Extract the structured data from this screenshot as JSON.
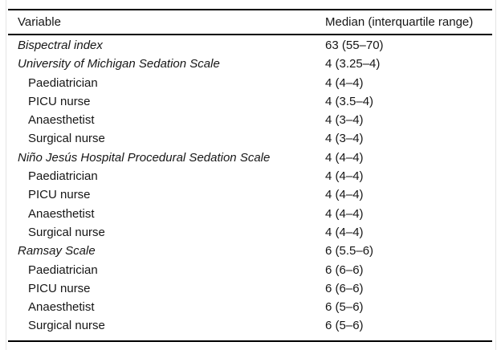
{
  "table": {
    "columns": [
      "Variable",
      "Median (interquartile range)"
    ],
    "rows": [
      {
        "type": "category",
        "label": "Bispectral index",
        "value": "63 (55–70)"
      },
      {
        "type": "category",
        "label": "University of Michigan Sedation Scale",
        "value": "4 (3.25–4)"
      },
      {
        "type": "sub",
        "label": "Paediatrician",
        "value": "4 (4–4)"
      },
      {
        "type": "sub",
        "label": "PICU nurse",
        "value": "4 (3.5–4)"
      },
      {
        "type": "sub",
        "label": "Anaesthetist",
        "value": "4 (3–4)"
      },
      {
        "type": "sub",
        "label": "Surgical nurse",
        "value": "4 (3–4)"
      },
      {
        "type": "category",
        "label": "Niño Jesús Hospital Procedural Sedation Scale",
        "value": "4 (4–4)"
      },
      {
        "type": "sub",
        "label": "Paediatrician",
        "value": "4 (4–4)"
      },
      {
        "type": "sub",
        "label": "PICU nurse",
        "value": "4 (4–4)"
      },
      {
        "type": "sub",
        "label": "Anaesthetist",
        "value": "4 (4–4)"
      },
      {
        "type": "sub",
        "label": "Surgical nurse",
        "value": "4 (4–4)"
      },
      {
        "type": "category",
        "label": "Ramsay Scale",
        "value": "6 (5.5–6)"
      },
      {
        "type": "sub",
        "label": "Paediatrician",
        "value": "6 (6–6)"
      },
      {
        "type": "sub",
        "label": "PICU nurse",
        "value": "6 (6–6)"
      },
      {
        "type": "sub",
        "label": "Anaesthetist",
        "value": "6 (5–6)"
      },
      {
        "type": "sub",
        "label": "Surgical nurse",
        "value": "6 (5–6)"
      }
    ],
    "rule_color": "#000000"
  }
}
